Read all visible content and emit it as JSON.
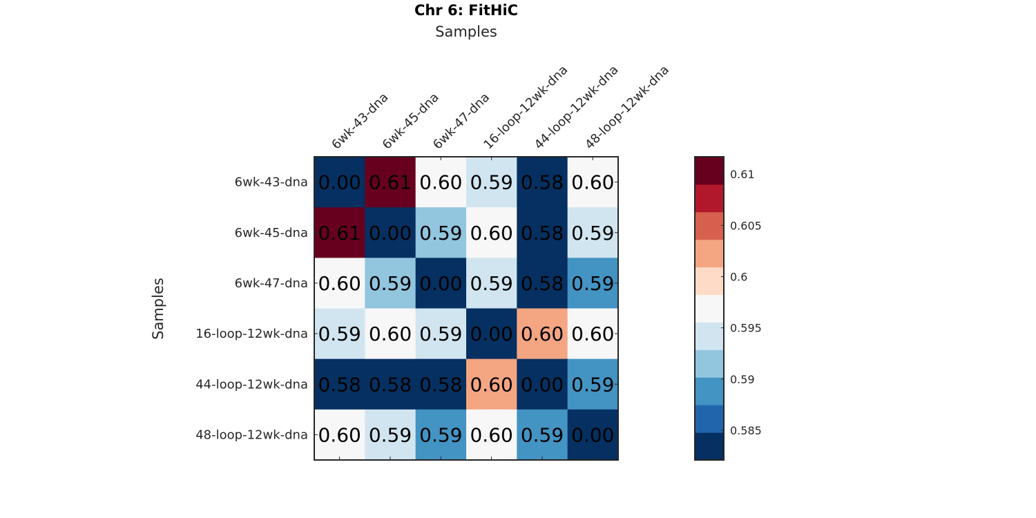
{
  "chart_data": {
    "type": "heatmap",
    "title": "Chr 6: FitHiC",
    "xlabel": "Samples",
    "ylabel": "Samples",
    "x_categories": [
      "6wk-43-dna",
      "6wk-45-dna",
      "6wk-47-dna",
      "16-loop-12wk-dna",
      "44-loop-12wk-dna",
      "48-loop-12wk-dna"
    ],
    "y_categories": [
      "6wk-43-dna",
      "6wk-45-dna",
      "6wk-47-dna",
      "16-loop-12wk-dna",
      "44-loop-12wk-dna",
      "48-loop-12wk-dna"
    ],
    "x_tick_position": "top",
    "values": [
      [
        0.0,
        0.61,
        0.6,
        0.59,
        0.58,
        0.6
      ],
      [
        0.61,
        0.0,
        0.59,
        0.6,
        0.58,
        0.59
      ],
      [
        0.6,
        0.59,
        0.0,
        0.59,
        0.58,
        0.59
      ],
      [
        0.59,
        0.6,
        0.59,
        0.0,
        0.6,
        0.6
      ],
      [
        0.58,
        0.58,
        0.58,
        0.6,
        0.0,
        0.59
      ],
      [
        0.6,
        0.59,
        0.59,
        0.6,
        0.59,
        0.0
      ]
    ],
    "cell_labels": [
      [
        "0.00",
        "0.61",
        "0.60",
        "0.59",
        "0.58",
        "0.60"
      ],
      [
        "0.61",
        "0.00",
        "0.59",
        "0.60",
        "0.58",
        "0.59"
      ],
      [
        "0.60",
        "0.59",
        "0.00",
        "0.59",
        "0.58",
        "0.59"
      ],
      [
        "0.59",
        "0.60",
        "0.59",
        "0.00",
        "0.60",
        "0.60"
      ],
      [
        "0.58",
        "0.58",
        "0.58",
        "0.60",
        "0.00",
        "0.59"
      ],
      [
        "0.60",
        "0.59",
        "0.59",
        "0.60",
        "0.59",
        "0.00"
      ]
    ],
    "cell_colors": [
      [
        "#053061",
        "#67001f",
        "#f7f7f7",
        "#d1e5f0",
        "#053061",
        "#f7f7f7"
      ],
      [
        "#67001f",
        "#053061",
        "#92c5de",
        "#f7f7f7",
        "#053061",
        "#d1e5f0"
      ],
      [
        "#f7f7f7",
        "#92c5de",
        "#053061",
        "#d1e5f0",
        "#053061",
        "#4393c3"
      ],
      [
        "#d1e5f0",
        "#f7f7f7",
        "#d1e5f0",
        "#053061",
        "#f4a582",
        "#f7f7f7"
      ],
      [
        "#053061",
        "#053061",
        "#053061",
        "#f4a582",
        "#053061",
        "#4393c3"
      ],
      [
        "#f7f7f7",
        "#d1e5f0",
        "#4393c3",
        "#f7f7f7",
        "#4393c3",
        "#053061"
      ]
    ],
    "colorbar": {
      "colormap": "RdBu_r (11 discrete levels)",
      "range": [
        0.5821,
        0.6117
      ],
      "ticks": [
        0.585,
        0.59,
        0.595,
        0.6,
        0.605,
        0.61
      ],
      "tick_labels": [
        "0.585",
        "0.59",
        "0.595",
        "0.6",
        "0.605",
        "0.61"
      ],
      "colors_bottom_to_top": [
        "#053061",
        "#2166ac",
        "#4393c3",
        "#92c5de",
        "#d1e5f0",
        "#f7f7f7",
        "#fddbc7",
        "#f4a582",
        "#d6604d",
        "#b2182b",
        "#67001f"
      ],
      "position": "right"
    },
    "grid": false,
    "legend": "colorbar-right"
  }
}
